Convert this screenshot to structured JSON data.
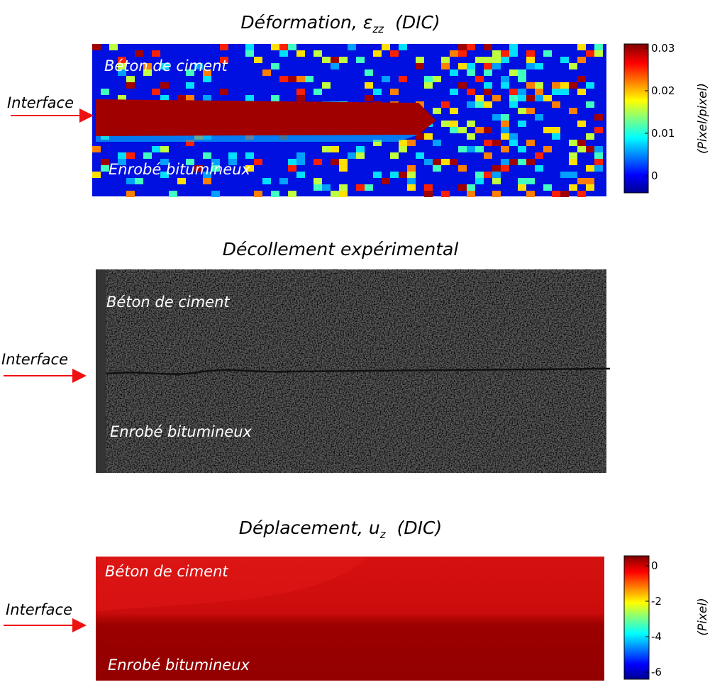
{
  "panels": [
    {
      "title": {
        "main": "Déformation, ε",
        "sub": "zz",
        "tail": "(DIC)"
      },
      "upper_label": "Béton de ciment",
      "lower_label": "Enrobé bitumineux",
      "interface_label": "Interface",
      "colorbar": {
        "unit": "(Pixel/pixel)",
        "ticks": [
          "0.03",
          "0.02",
          "0.01",
          "0"
        ]
      }
    },
    {
      "title": {
        "main": "Décollement expérimental"
      },
      "upper_label": "Béton de ciment",
      "lower_label": "Enrobé bitumineux",
      "interface_label": "Interface"
    },
    {
      "title": {
        "main": "Déplacement, u",
        "sub": "z",
        "tail": "(DIC)"
      },
      "upper_label": "Béton de ciment",
      "lower_label": "Enrobé bitumineux",
      "interface_label": "Interface",
      "colorbar": {
        "unit": "(Pixel)",
        "ticks": [
          "0",
          "-2",
          "-4",
          "-6"
        ]
      }
    }
  ]
}
